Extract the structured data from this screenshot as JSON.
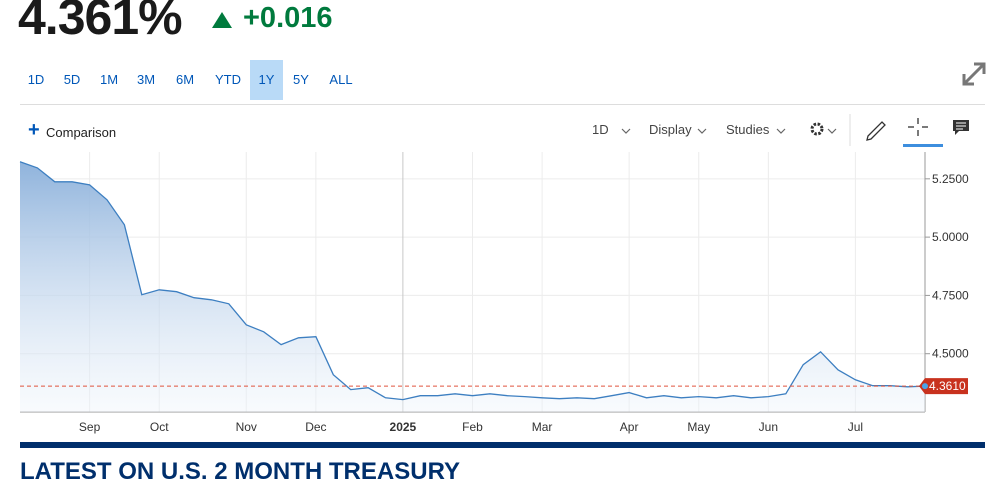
{
  "quote": {
    "price": "4.361%",
    "change": "+0.016"
  },
  "ranges": {
    "items": [
      "1D",
      "5D",
      "1M",
      "3M",
      "6M",
      "YTD",
      "1Y",
      "5Y",
      "ALL"
    ],
    "selected": "1Y"
  },
  "toolbar": {
    "comparison": "Comparison",
    "interval": "1D",
    "display": "Display",
    "studies": "Studies"
  },
  "chart": {
    "type": "line",
    "color": "#3d7fc1",
    "x": [
      null,
      null,
      null,
      null,
      "Sep",
      null,
      null,
      null,
      "Oct",
      null,
      null,
      null,
      null,
      "Nov",
      null,
      null,
      null,
      "Dec",
      null,
      null,
      null,
      null,
      "2025",
      null,
      null,
      null,
      "Feb",
      null,
      null,
      null,
      "Mar",
      null,
      null,
      null,
      null,
      "Apr",
      null,
      null,
      null,
      "May",
      null,
      null,
      null,
      "Jun",
      null,
      null,
      null,
      null,
      "Jul",
      null,
      null,
      null,
      null
    ],
    "values": [
      5.323,
      5.297,
      5.237,
      5.237,
      5.224,
      5.16,
      5.053,
      4.753,
      4.774,
      4.766,
      4.74,
      4.731,
      4.714,
      4.624,
      4.594,
      4.539,
      4.568,
      4.573,
      4.41,
      4.346,
      4.354,
      4.311,
      4.303,
      4.32,
      4.32,
      4.328,
      4.32,
      4.328,
      4.32,
      4.316,
      4.311,
      4.307,
      4.311,
      4.307,
      4.32,
      4.333,
      4.311,
      4.32,
      4.311,
      4.316,
      4.311,
      4.32,
      4.311,
      4.316,
      4.328,
      4.453,
      4.508,
      4.431,
      4.388,
      4.363,
      4.363,
      4.358,
      4.361
    ],
    "ylim": [
      4.25,
      5.365
    ],
    "yticks": [
      {
        "value": 4.5,
        "label": "4.5000"
      },
      {
        "value": 4.75,
        "label": "4.7500"
      },
      {
        "value": 5.0,
        "label": "5.0000"
      },
      {
        "value": 5.25,
        "label": "5.2500"
      }
    ],
    "last_value": {
      "value": 4.361,
      "label": "4.3610"
    },
    "grid": true
  },
  "section_heading": "LATEST ON U.S. 2 MONTH TREASURY"
}
